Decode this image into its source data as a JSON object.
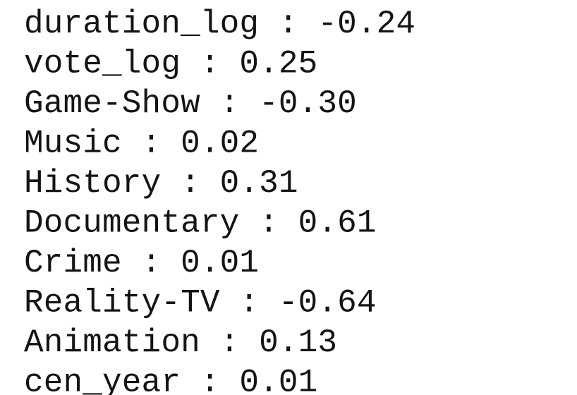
{
  "lines": [
    "duration_log : -0.24",
    "vote_log : 0.25",
    "Game-Show : -0.30",
    "Music : 0.02",
    "History : 0.31",
    "Documentary : 0.61",
    "Crime : 0.01",
    "Reality-TV : -0.64",
    "Animation : 0.13",
    "cen_year : 0.01"
  ]
}
